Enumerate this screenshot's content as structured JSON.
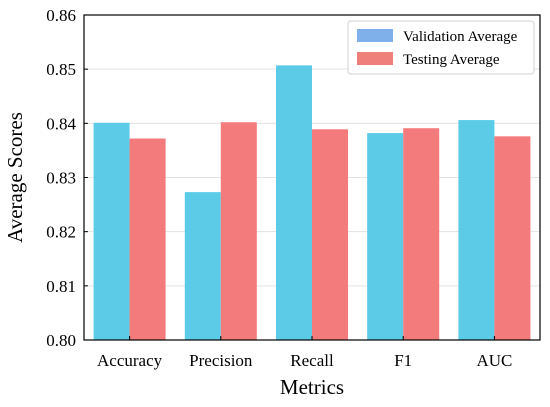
{
  "chart_data": {
    "type": "bar",
    "title": "",
    "xlabel": "Metrics",
    "ylabel": "Average Scores",
    "categories": [
      "Accuracy",
      "Precision",
      "Recall",
      "F1",
      "AUC"
    ],
    "series": [
      {
        "name": "Validation Average",
        "values": [
          0.8401,
          0.8273,
          0.8507,
          0.8382,
          0.8406
        ]
      },
      {
        "name": "Testing Average",
        "values": [
          0.8372,
          0.8402,
          0.8389,
          0.8391,
          0.8376
        ]
      }
    ],
    "ylim": [
      0.8,
      0.86
    ],
    "yticks": [
      "0.80",
      "0.81",
      "0.82",
      "0.83",
      "0.84",
      "0.85",
      "0.86"
    ],
    "grid": true,
    "legend_position": "top-right",
    "colors": {
      "validation_bar": "#5bcbe8",
      "testing_bar": "#f47b7b",
      "validation_legend": "#7fb0ea",
      "testing_legend": "#ee7f7a"
    }
  }
}
